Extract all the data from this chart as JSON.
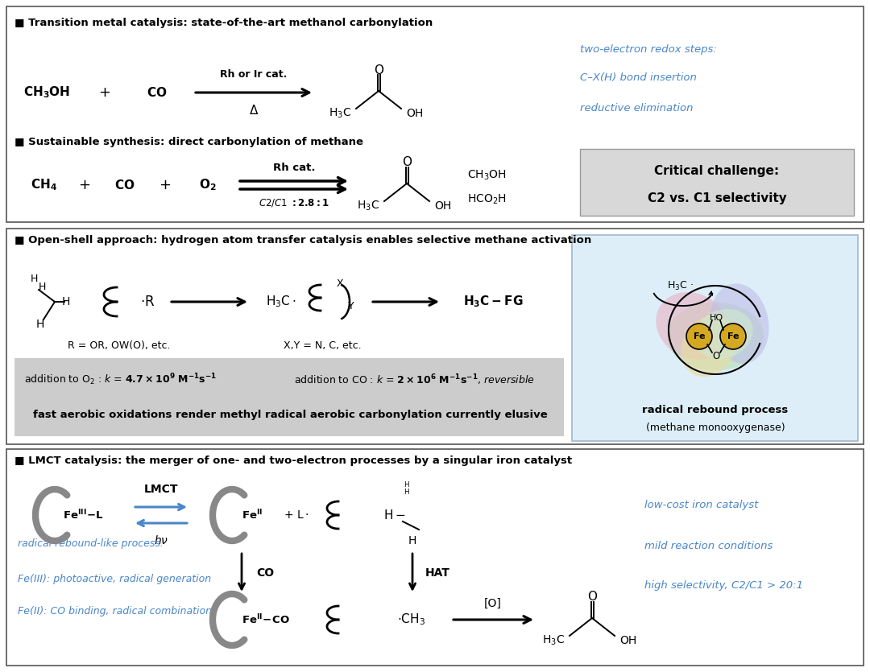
{
  "bg_color": "#ffffff",
  "panel1": {
    "title": "■ Transition metal catalysis: state-of-the-art methanol carbonylation",
    "title2": "■ Sustainable synthesis: direct carbonylation of methane",
    "blue_texts": [
      "two-electron redox steps:",
      "C–X(H) bond insertion",
      "reductive elimination"
    ],
    "critical": "Critical challenge:\n\nC2 vs. C1 selectivity"
  },
  "panel2": {
    "title": "■ Open-shell approach: hydrogen atom transfer catalysis enables selective methane activation",
    "r_text": "R = OR, OW(O), etc.",
    "xy_text": "X,Y = N, C, etc.",
    "radical_label": "radical rebound process",
    "radical_sub": "(methane monooxygenase)"
  },
  "panel3": {
    "title": "■ LMCT catalysis: the merger of one- and two-electron processes by a singular iron catalyst",
    "blue_left": [
      "radical rebound-like process:",
      "Fe(III): photoactive, radical generation",
      "Fe(II): CO binding, radical combinations"
    ],
    "blue_right": [
      "low-cost iron catalyst",
      "mild reaction conditions",
      "high selectivity, C2/C1 > 20:1"
    ]
  },
  "blue": "#4a86c8",
  "dark_gray": "#444444",
  "mid_gray": "#aaaaaa",
  "light_gray": "#d8d8d8",
  "light_blue": "#ddeef8"
}
